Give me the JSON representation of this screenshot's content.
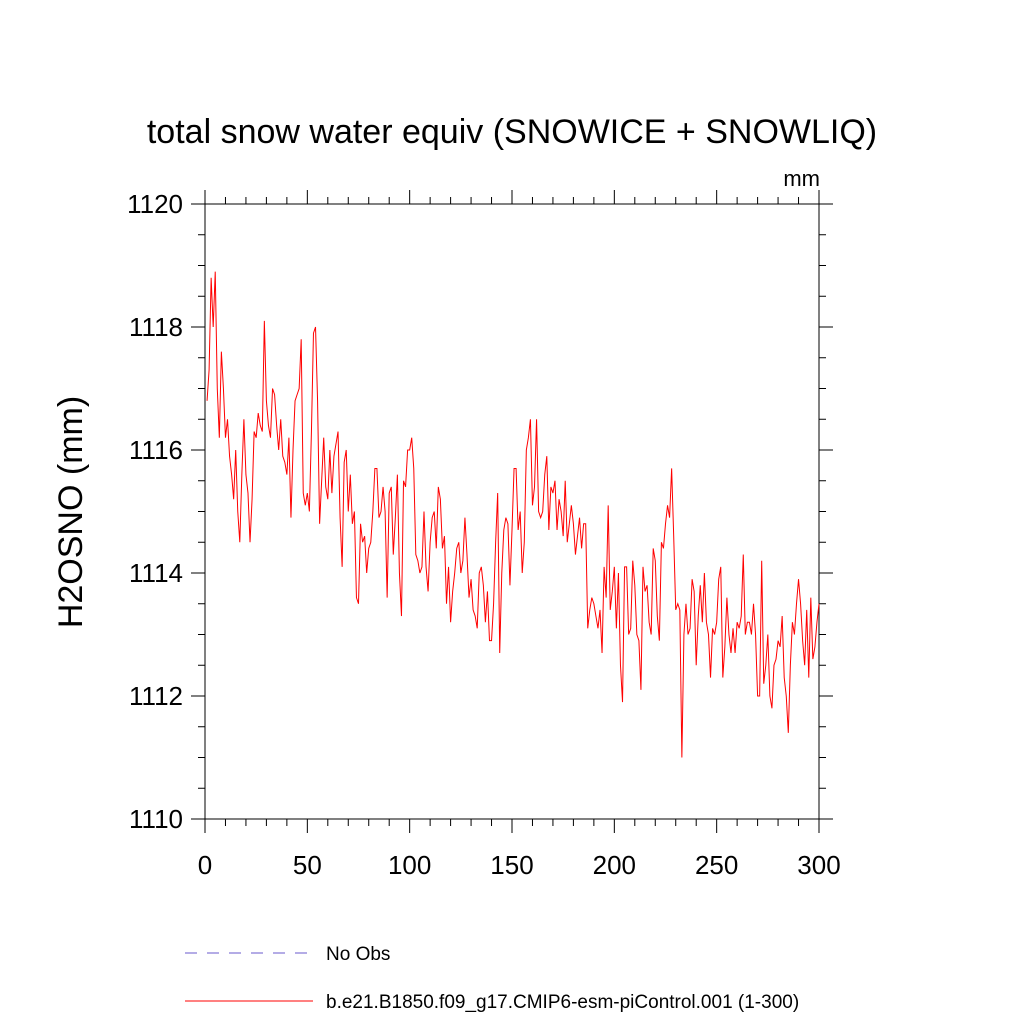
{
  "chart_data": {
    "type": "line",
    "title": "total snow water equiv (SNOWICE + SNOWLIQ)",
    "units": "mm",
    "xlabel": "",
    "ylabel": "H2OSNO  (mm)",
    "xlim": [
      0,
      300
    ],
    "ylim": [
      1110,
      1120
    ],
    "x_ticks": [
      "0",
      "50",
      "100",
      "150",
      "200",
      "250",
      "300"
    ],
    "y_ticks": [
      "1110",
      "1112",
      "1114",
      "1116",
      "1118",
      "1120"
    ],
    "grid": false,
    "legend_position": "bottom",
    "series": [
      {
        "name": "No Obs",
        "color": "#6a5acd",
        "style": "dashed",
        "values": []
      },
      {
        "name": "b.e21.B1850.f09_g17.CMIP6-esm-piControl.001 (1-300)",
        "color": "#ff0000",
        "style": "solid",
        "x_start": 1,
        "values": [
          1116.8,
          1117.3,
          1118.8,
          1118.0,
          1118.9,
          1117.0,
          1116.2,
          1117.6,
          1117.0,
          1116.2,
          1116.5,
          1115.9,
          1115.6,
          1115.2,
          1116.0,
          1115.0,
          1114.5,
          1115.6,
          1116.5,
          1115.6,
          1115.3,
          1114.5,
          1115.2,
          1116.3,
          1116.2,
          1116.6,
          1116.4,
          1116.3,
          1118.1,
          1116.8,
          1116.4,
          1116.2,
          1117.0,
          1116.9,
          1116.4,
          1116.0,
          1116.5,
          1115.9,
          1115.8,
          1115.6,
          1116.2,
          1114.9,
          1116.0,
          1116.8,
          1116.9,
          1117.0,
          1117.8,
          1115.3,
          1115.1,
          1115.3,
          1115.0,
          1116.3,
          1117.9,
          1118.0,
          1116.8,
          1114.8,
          1115.5,
          1116.2,
          1115.4,
          1115.2,
          1116.0,
          1115.3,
          1115.9,
          1116.1,
          1116.3,
          1114.9,
          1114.1,
          1115.8,
          1116.0,
          1115.0,
          1115.6,
          1114.8,
          1115.0,
          1113.6,
          1113.5,
          1114.8,
          1114.5,
          1114.6,
          1114.0,
          1114.4,
          1114.5,
          1115.0,
          1115.7,
          1115.7,
          1114.9,
          1115.0,
          1115.4,
          1115.0,
          1113.6,
          1115.3,
          1115.4,
          1114.3,
          1114.9,
          1115.6,
          1114.0,
          1113.3,
          1115.5,
          1115.4,
          1116.0,
          1116.0,
          1116.2,
          1115.7,
          1114.3,
          1114.2,
          1114.0,
          1114.1,
          1115.0,
          1114.1,
          1113.7,
          1114.5,
          1114.9,
          1115.0,
          1114.4,
          1115.4,
          1115.2,
          1114.4,
          1114.6,
          1113.5,
          1114.1,
          1113.2,
          1113.7,
          1114.0,
          1114.4,
          1114.5,
          1114.0,
          1114.2,
          1114.9,
          1114.3,
          1113.6,
          1113.9,
          1113.4,
          1113.3,
          1113.1,
          1114.0,
          1114.1,
          1113.8,
          1113.2,
          1113.7,
          1112.9,
          1112.9,
          1113.5,
          1114.5,
          1115.3,
          1112.7,
          1114.0,
          1114.7,
          1114.9,
          1114.8,
          1113.8,
          1114.7,
          1115.7,
          1115.7,
          1114.7,
          1115.0,
          1114.0,
          1114.5,
          1116.0,
          1116.2,
          1116.5,
          1115.1,
          1115.4,
          1116.5,
          1115.0,
          1114.9,
          1115.0,
          1115.6,
          1115.9,
          1114.7,
          1115.4,
          1115.3,
          1115.5,
          1114.7,
          1115.2,
          1115.0,
          1114.6,
          1115.5,
          1114.5,
          1114.8,
          1115.1,
          1114.8,
          1114.3,
          1114.6,
          1114.9,
          1114.4,
          1114.8,
          1114.8,
          1113.1,
          1113.4,
          1113.6,
          1113.5,
          1113.3,
          1113.1,
          1113.4,
          1112.7,
          1114.1,
          1113.6,
          1115.1,
          1113.4,
          1113.7,
          1114.1,
          1113.1,
          1114.0,
          1112.5,
          1111.9,
          1114.1,
          1114.1,
          1113.0,
          1113.1,
          1114.2,
          1113.8,
          1113.0,
          1112.9,
          1112.1,
          1114.1,
          1113.7,
          1113.8,
          1113.2,
          1113.0,
          1114.4,
          1114.2,
          1113.3,
          1112.9,
          1114.5,
          1114.4,
          1114.8,
          1115.1,
          1114.9,
          1115.7,
          1114.6,
          1113.4,
          1113.5,
          1113.4,
          1111.0,
          1113.0,
          1113.5,
          1113.0,
          1113.1,
          1113.9,
          1113.7,
          1112.5,
          1113.3,
          1113.8,
          1113.2,
          1114.0,
          1113.2,
          1113.0,
          1112.3,
          1113.1,
          1113.0,
          1113.2,
          1113.9,
          1114.1,
          1112.3,
          1112.8,
          1113.6,
          1113.0,
          1112.7,
          1113.1,
          1112.7,
          1113.2,
          1113.1,
          1113.3,
          1114.3,
          1113.0,
          1113.2,
          1113.2,
          1113.0,
          1113.5,
          1113.0,
          1112.0,
          1112.0,
          1114.2,
          1112.2,
          1112.5,
          1113.0,
          1112.0,
          1111.8,
          1112.5,
          1112.6,
          1112.9,
          1112.8,
          1113.3,
          1112.3,
          1112.0,
          1111.4,
          1112.5,
          1113.2,
          1113.0,
          1113.5,
          1113.9,
          1113.5,
          1112.9,
          1112.5,
          1113.4,
          1112.3,
          1113.6,
          1112.6,
          1112.8,
          1113.2,
          1113.5
        ]
      }
    ]
  }
}
